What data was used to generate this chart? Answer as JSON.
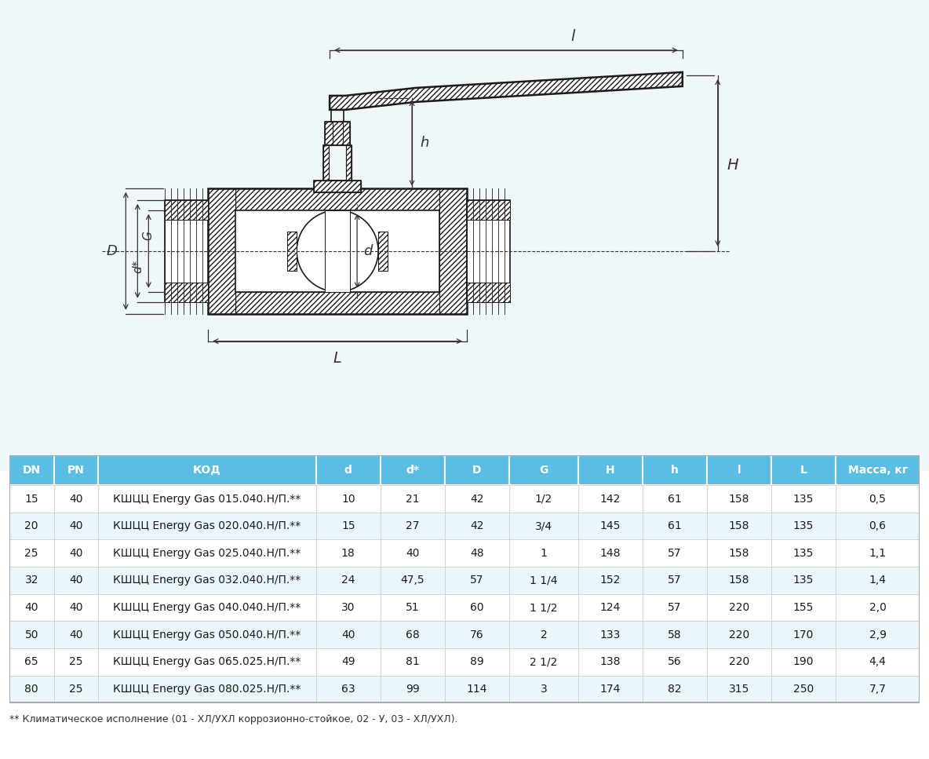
{
  "table_headers": [
    "DN",
    "PN",
    "КОД",
    "d",
    "d*",
    "D",
    "G",
    "H",
    "h",
    "l",
    "L",
    "Масса, кг"
  ],
  "table_rows": [
    [
      "15",
      "40",
      "КШЦЦ Energy Gas 015.040.Н/П.**",
      "10",
      "21",
      "42",
      "1/2",
      "142",
      "61",
      "158",
      "135",
      "0,5"
    ],
    [
      "20",
      "40",
      "КШЦЦ Energy Gas 020.040.Н/П.**",
      "15",
      "27",
      "42",
      "3/4",
      "145",
      "61",
      "158",
      "135",
      "0,6"
    ],
    [
      "25",
      "40",
      "КШЦЦ Energy Gas 025.040.Н/П.**",
      "18",
      "40",
      "48",
      "1",
      "148",
      "57",
      "158",
      "135",
      "1,1"
    ],
    [
      "32",
      "40",
      "КШЦЦ Energy Gas 032.040.Н/П.**",
      "24",
      "47,5",
      "57",
      "1 1/4",
      "152",
      "57",
      "158",
      "135",
      "1,4"
    ],
    [
      "40",
      "40",
      "КШЦЦ Energy Gas 040.040.Н/П.**",
      "30",
      "51",
      "60",
      "1 1/2",
      "124",
      "57",
      "220",
      "155",
      "2,0"
    ],
    [
      "50",
      "40",
      "КШЦЦ Energy Gas 050.040.Н/П.**",
      "40",
      "68",
      "76",
      "2",
      "133",
      "58",
      "220",
      "170",
      "2,9"
    ],
    [
      "65",
      "25",
      "КШЦЦ Energy Gas 065.025.Н/П.**",
      "49",
      "81",
      "89",
      "2 1/2",
      "138",
      "56",
      "220",
      "190",
      "4,4"
    ],
    [
      "80",
      "25",
      "КШЦЦ Energy Gas 080.025.Н/П.**",
      "63",
      "99",
      "114",
      "3",
      "174",
      "82",
      "315",
      "250",
      "7,7"
    ]
  ],
  "header_bg": "#5BBCE4",
  "row_bg_odd": "#FFFFFF",
  "row_bg_even": "#EAF5FC",
  "header_text_color": "#FFFFFF",
  "row_text_color": "#1A1A1A",
  "footnote": "** Климатическое исполнение (01 - ХЛ/УХЛ коррозионно-стойкое, 02 - У, 03 - ХЛ/УХЛ).",
  "bg_color": "#FFFFFF",
  "drawing_bg": "#F0F7FB",
  "line_color": "#1A1A1A",
  "hatch_color": "#1A1A1A"
}
